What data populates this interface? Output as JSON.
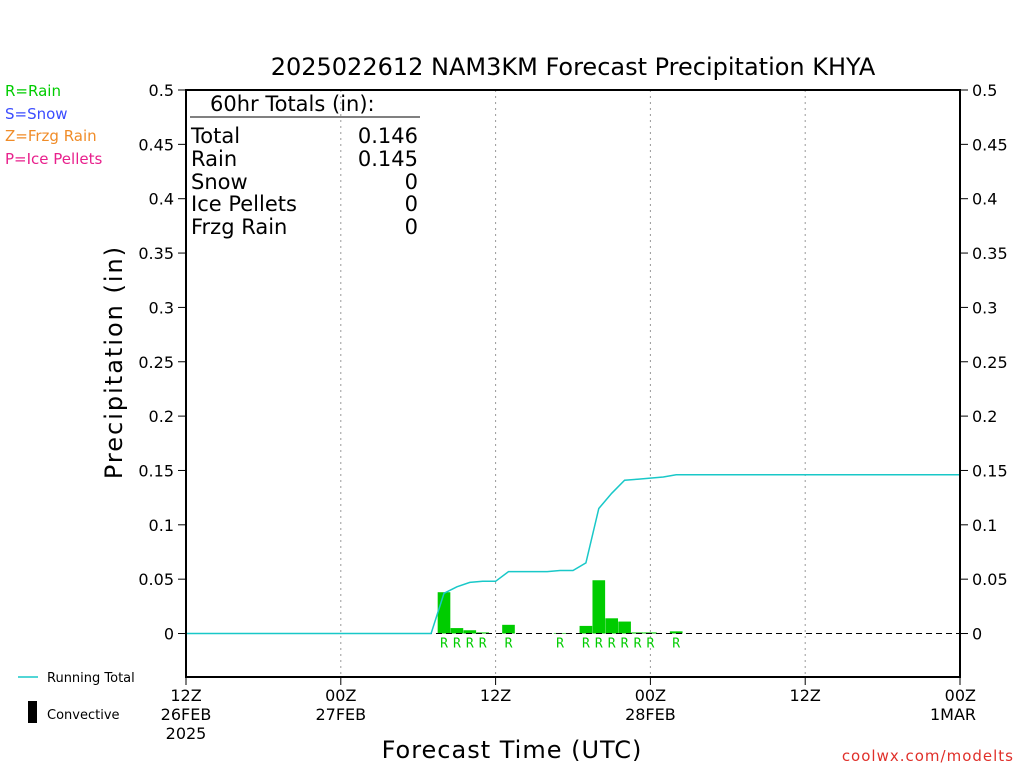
{
  "chart_data": {
    "type": "bar",
    "title": "2025022612 NAM3KM Forecast Precipitation KHYA",
    "xlabel": "Forecast Time (UTC)",
    "ylabel": "Precipitation (in)",
    "ylim": [
      -0.04,
      0.5
    ],
    "yticks": [
      "0.5",
      "0.45",
      "0.4",
      "0.35",
      "0.3",
      "0.25",
      "0.2",
      "0.15",
      "0.1",
      "0.05",
      "0"
    ],
    "xlim_hours": [
      0,
      60
    ],
    "xticks": [
      {
        "hour": 0,
        "lines": [
          "12Z",
          "26FEB",
          "2025"
        ]
      },
      {
        "hour": 12,
        "lines": [
          "00Z",
          "27FEB"
        ]
      },
      {
        "hour": 24,
        "lines": [
          "12Z"
        ]
      },
      {
        "hour": 36,
        "lines": [
          "00Z",
          "28FEB"
        ]
      },
      {
        "hour": 48,
        "lines": [
          "12Z"
        ]
      },
      {
        "hour": 60,
        "lines": [
          "00Z",
          "1MAR"
        ]
      }
    ],
    "grid_hours": [
      12,
      24,
      36,
      48
    ],
    "bars": [
      {
        "hour": 20,
        "value": 0.038,
        "ptype": "R"
      },
      {
        "hour": 21,
        "value": 0.005,
        "ptype": "R"
      },
      {
        "hour": 22,
        "value": 0.003,
        "ptype": "R"
      },
      {
        "hour": 23,
        "value": 0.001,
        "ptype": "R"
      },
      {
        "hour": 25,
        "value": 0.008,
        "ptype": "R"
      },
      {
        "hour": 29,
        "value": 0.0005,
        "ptype": "R"
      },
      {
        "hour": 31,
        "value": 0.007,
        "ptype": "R"
      },
      {
        "hour": 32,
        "value": 0.049,
        "ptype": "R"
      },
      {
        "hour": 33,
        "value": 0.014,
        "ptype": "R"
      },
      {
        "hour": 34,
        "value": 0.011,
        "ptype": "R"
      },
      {
        "hour": 35,
        "value": 0.001,
        "ptype": "R"
      },
      {
        "hour": 36,
        "value": 0.001,
        "ptype": "R"
      },
      {
        "hour": 38,
        "value": 0.002,
        "ptype": "R"
      }
    ],
    "running_total": {
      "name": "Running Total",
      "hours": [
        0,
        19,
        20,
        21,
        22,
        23,
        24,
        25,
        26,
        27,
        28,
        29,
        30,
        31,
        32,
        33,
        34,
        35,
        36,
        37,
        38,
        39,
        60
      ],
      "values": [
        0,
        0,
        0.037,
        0.043,
        0.047,
        0.048,
        0.048,
        0.057,
        0.057,
        0.057,
        0.057,
        0.058,
        0.058,
        0.065,
        0.115,
        0.129,
        0.141,
        0.142,
        0.143,
        0.144,
        0.146,
        0.146,
        0.146
      ]
    },
    "colors": {
      "rain": "#00cc00",
      "snow": "#3b4cff",
      "frzg_rain": "#f08c28",
      "ice_pellets": "#e8208c",
      "running_total": "#19c8c8"
    }
  },
  "totals": {
    "header": "60hr Totals (in):",
    "rows": [
      {
        "label": "Total",
        "value": "0.146"
      },
      {
        "label": "Rain",
        "value": "0.145"
      },
      {
        "label": "Snow",
        "value": "0"
      },
      {
        "label": "Ice Pellets",
        "value": "0"
      },
      {
        "label": "Frzg Rain",
        "value": "0"
      }
    ]
  },
  "legend": {
    "ptypes": [
      {
        "text": "R=Rain",
        "color": "#00cc00"
      },
      {
        "text": "S=Snow",
        "color": "#3b4cff"
      },
      {
        "text": "Z=Frzg Rain",
        "color": "#f08c28"
      },
      {
        "text": "P=Ice Pellets",
        "color": "#e8208c"
      }
    ],
    "running_total": "Running Total",
    "convective": "Convective"
  },
  "credit": "coolwx.com/modelts"
}
